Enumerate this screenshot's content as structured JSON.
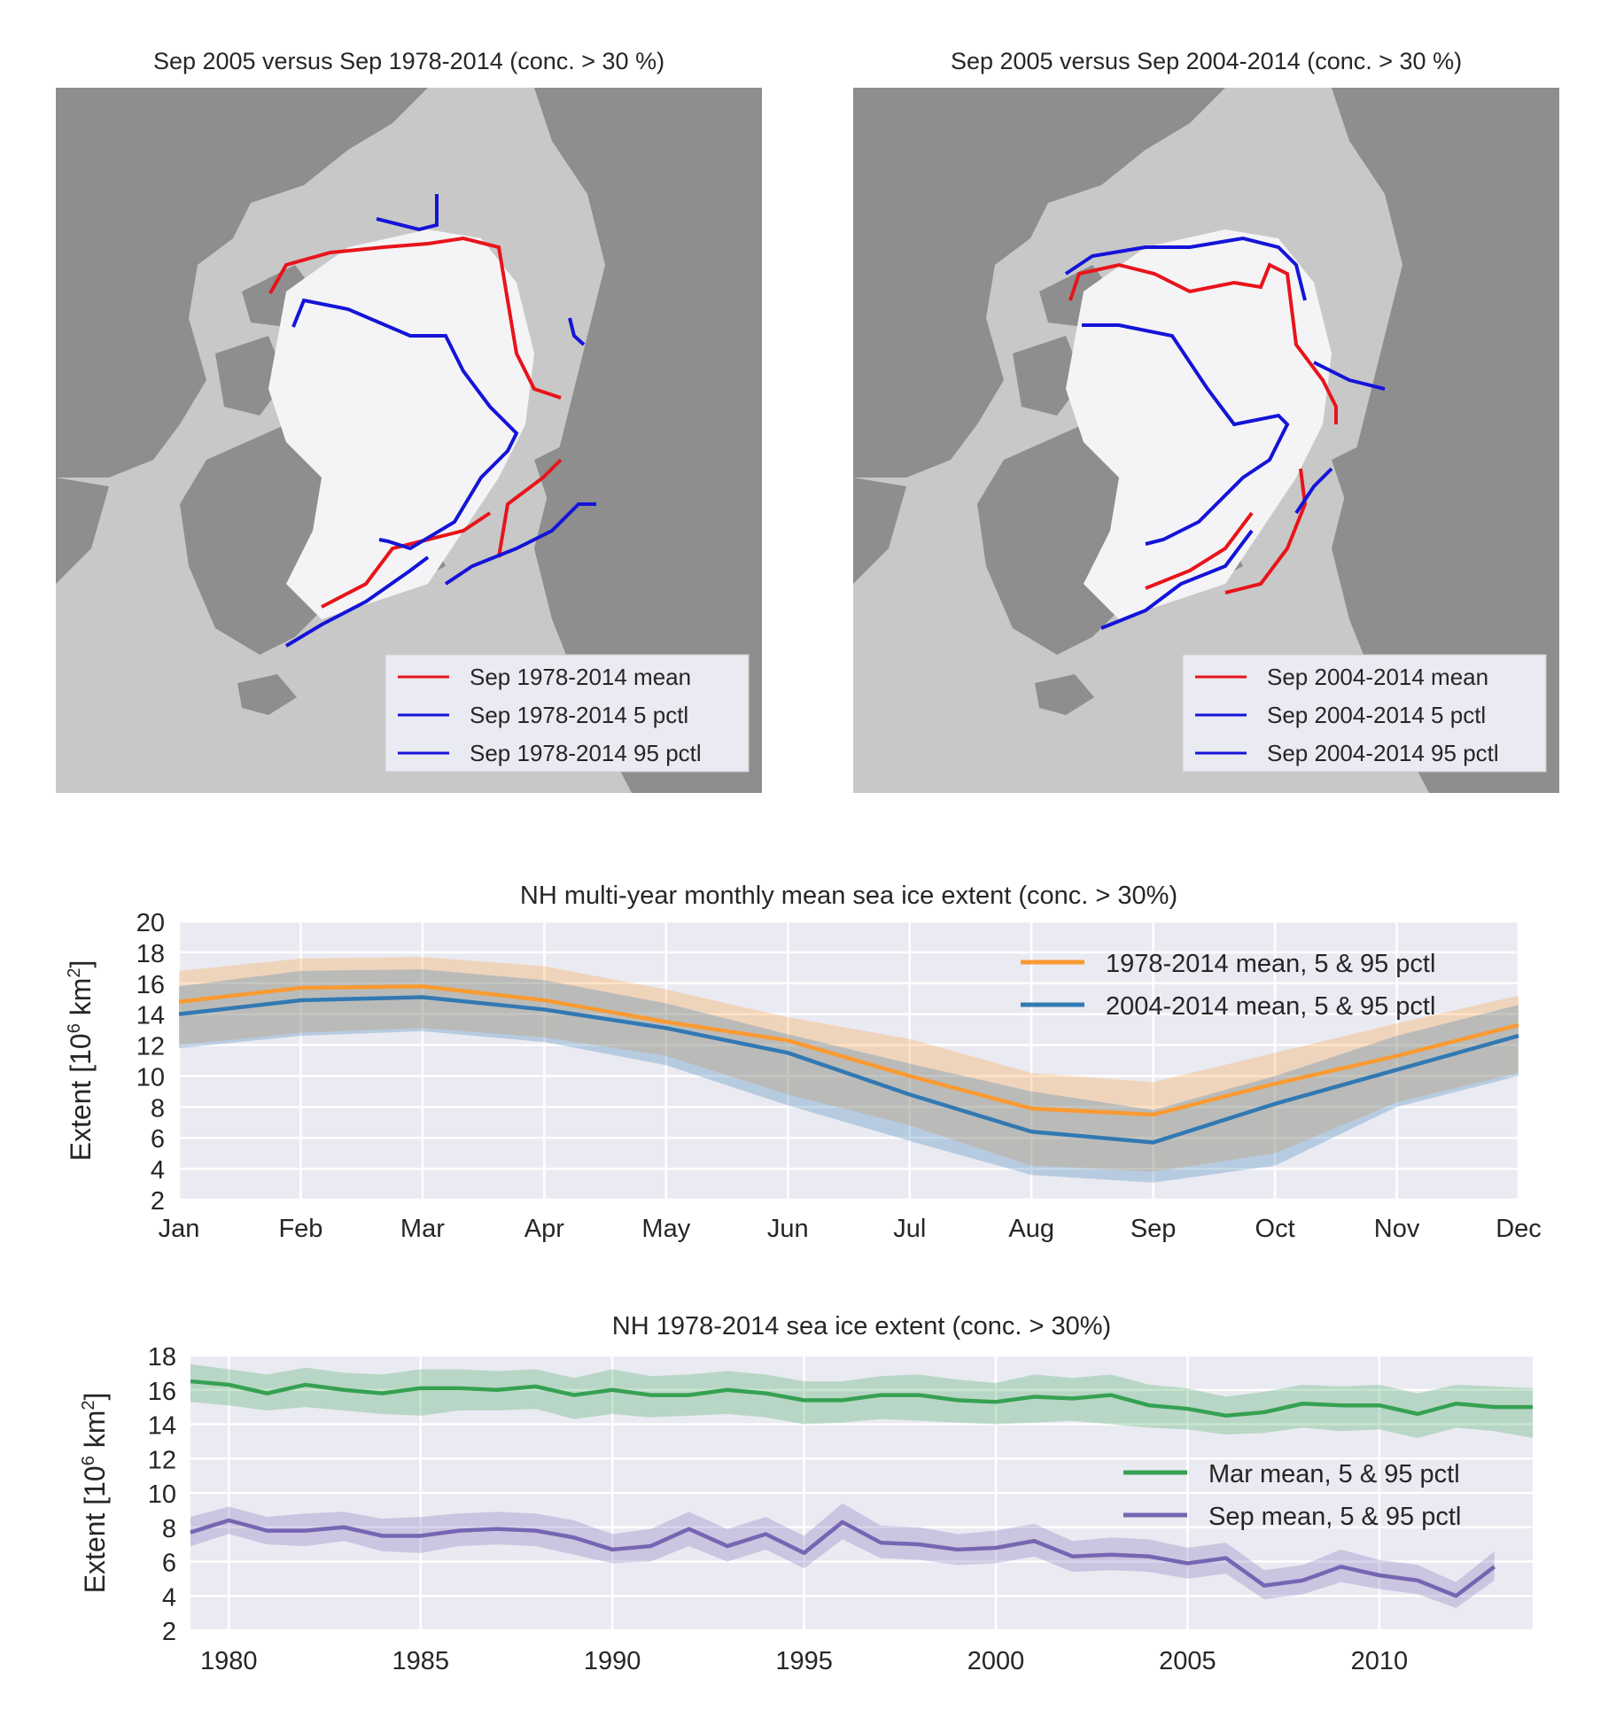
{
  "maps": [
    {
      "title": "Sep 2005 versus Sep 1978-2014 (conc. > 30 %)",
      "legend": [
        "Sep 1978-2014 mean",
        "Sep 1978-2014 5 pctl",
        "Sep 1978-2014 95 pctl"
      ],
      "colors": {
        "mean": "#e8141b",
        "p5": "#1414d8",
        "p95": "#1414d8"
      }
    },
    {
      "title": "Sep 2005 versus Sep 2004-2014 (conc. > 30 %)",
      "legend": [
        "Sep 2004-2014 mean",
        "Sep 2004-2014 5 pctl",
        "Sep 2004-2014 95 pctl"
      ],
      "colors": {
        "mean": "#e8141b",
        "p5": "#1414d8",
        "p95": "#1414d8"
      }
    }
  ],
  "chart_data": [
    {
      "type": "line",
      "title": "NH multi-year monthly mean sea ice extent (conc. > 30%)",
      "ylabel": "Extent [10^6 km^2]",
      "xlabel": "",
      "categories": [
        "Jan",
        "Feb",
        "Mar",
        "Apr",
        "May",
        "Jun",
        "Jul",
        "Aug",
        "Sep",
        "Oct",
        "Nov",
        "Dec"
      ],
      "ylim": [
        2,
        20
      ],
      "yticks": [
        2,
        4,
        6,
        8,
        10,
        12,
        14,
        16,
        18,
        20
      ],
      "grid": true,
      "legend_position": "top-right",
      "series": [
        {
          "name": "1978-2014 mean, 5 & 95 pctl",
          "color": "#fa9a32",
          "values": [
            14.8,
            15.7,
            15.8,
            14.9,
            13.5,
            12.3,
            10.0,
            7.9,
            7.5,
            9.5,
            11.3,
            13.3
          ],
          "p5": [
            12.0,
            12.8,
            13.1,
            12.5,
            11.3,
            8.8,
            6.8,
            4.2,
            3.8,
            5.0,
            8.3,
            10.2
          ],
          "p95": [
            16.8,
            17.6,
            17.7,
            17.1,
            15.6,
            13.8,
            12.4,
            10.2,
            9.6,
            11.5,
            13.4,
            15.2
          ]
        },
        {
          "name": "2004-2014 mean, 5 & 95 pctl",
          "color": "#3279b3",
          "values": [
            14.0,
            14.9,
            15.1,
            14.3,
            13.1,
            11.5,
            8.8,
            6.4,
            5.7,
            8.2,
            10.4,
            12.6
          ],
          "p5": [
            11.8,
            12.6,
            12.9,
            12.2,
            10.7,
            8.1,
            5.8,
            3.6,
            3.1,
            4.2,
            8.0,
            10.0
          ],
          "p95": [
            15.8,
            16.8,
            16.9,
            16.2,
            14.7,
            12.7,
            10.8,
            9.0,
            7.8,
            10.0,
            12.6,
            14.6
          ]
        }
      ]
    },
    {
      "type": "line",
      "title": "NH 1978-2014 sea ice extent (conc. > 30%)",
      "ylabel": "Extent [10^6 km^2]",
      "xlabel": "",
      "x": [
        1979,
        1980,
        1981,
        1982,
        1983,
        1984,
        1985,
        1986,
        1987,
        1988,
        1989,
        1990,
        1991,
        1992,
        1993,
        1994,
        1995,
        1996,
        1997,
        1998,
        1999,
        2000,
        2001,
        2002,
        2003,
        2004,
        2005,
        2006,
        2007,
        2008,
        2009,
        2010,
        2011,
        2012,
        2013,
        2014
      ],
      "xlim": [
        1979,
        2014
      ],
      "xticks": [
        1980,
        1985,
        1990,
        1995,
        2000,
        2005,
        2010
      ],
      "ylim": [
        2,
        18
      ],
      "yticks": [
        2,
        4,
        6,
        8,
        10,
        12,
        14,
        16,
        18
      ],
      "grid": true,
      "legend_position": "center-right",
      "series": [
        {
          "name": "Mar mean, 5 & 95 pctl",
          "color": "#35a152",
          "values": [
            16.5,
            16.3,
            15.8,
            16.3,
            16.0,
            15.8,
            16.1,
            16.1,
            16.0,
            16.2,
            15.7,
            16.0,
            15.7,
            15.7,
            16.0,
            15.8,
            15.4,
            15.4,
            15.7,
            15.7,
            15.4,
            15.3,
            15.6,
            15.5,
            15.7,
            15.1,
            14.9,
            14.5,
            14.7,
            15.2,
            15.1,
            15.1,
            14.6,
            15.2,
            15.0,
            15.0
          ],
          "p5": [
            15.3,
            15.1,
            14.8,
            15.0,
            14.8,
            14.6,
            14.5,
            14.8,
            14.8,
            14.9,
            14.3,
            14.6,
            14.4,
            14.5,
            14.6,
            14.4,
            14.0,
            14.1,
            14.3,
            14.2,
            14.1,
            14.0,
            14.1,
            14.2,
            14.0,
            13.8,
            13.7,
            13.4,
            13.5,
            13.8,
            13.6,
            13.7,
            13.2,
            13.8,
            13.6,
            13.2
          ],
          "p95": [
            17.5,
            17.2,
            16.9,
            17.3,
            17.0,
            16.9,
            17.2,
            17.2,
            17.1,
            17.2,
            16.7,
            17.2,
            16.8,
            16.9,
            17.1,
            16.9,
            16.5,
            16.5,
            16.8,
            16.9,
            16.6,
            16.4,
            16.9,
            16.7,
            16.9,
            16.3,
            16.1,
            15.6,
            15.9,
            16.3,
            16.2,
            16.3,
            15.8,
            16.3,
            16.2,
            16.1
          ]
        },
        {
          "name": "Sep mean, 5 & 95 pctl",
          "color": "#7665b3",
          "values": [
            7.7,
            8.4,
            7.8,
            7.8,
            8.0,
            7.5,
            7.5,
            7.8,
            7.9,
            7.8,
            7.4,
            6.7,
            6.9,
            7.9,
            6.9,
            7.6,
            6.5,
            8.3,
            7.1,
            7.0,
            6.7,
            6.8,
            7.2,
            6.3,
            6.4,
            6.3,
            5.9,
            6.2,
            4.6,
            4.9,
            5.7,
            5.2,
            4.9,
            4.0,
            5.7,
            null
          ],
          "p5": [
            6.9,
            7.6,
            7.0,
            6.9,
            7.2,
            6.6,
            6.5,
            6.9,
            7.0,
            6.9,
            6.4,
            5.9,
            6.0,
            6.9,
            6.0,
            6.7,
            5.6,
            7.3,
            6.2,
            6.1,
            5.8,
            5.9,
            6.3,
            5.4,
            5.5,
            5.4,
            5.0,
            5.3,
            3.8,
            4.1,
            4.8,
            4.4,
            4.1,
            3.3,
            4.9,
            null
          ],
          "p95": [
            8.6,
            9.2,
            8.6,
            8.8,
            8.9,
            8.5,
            8.6,
            8.8,
            8.9,
            8.8,
            8.4,
            7.6,
            7.9,
            8.9,
            7.9,
            8.6,
            7.5,
            9.4,
            8.1,
            8.0,
            7.6,
            7.8,
            8.2,
            7.2,
            7.4,
            7.3,
            6.8,
            7.1,
            5.5,
            5.8,
            6.7,
            6.1,
            5.8,
            4.8,
            6.6,
            null
          ]
        }
      ]
    }
  ]
}
